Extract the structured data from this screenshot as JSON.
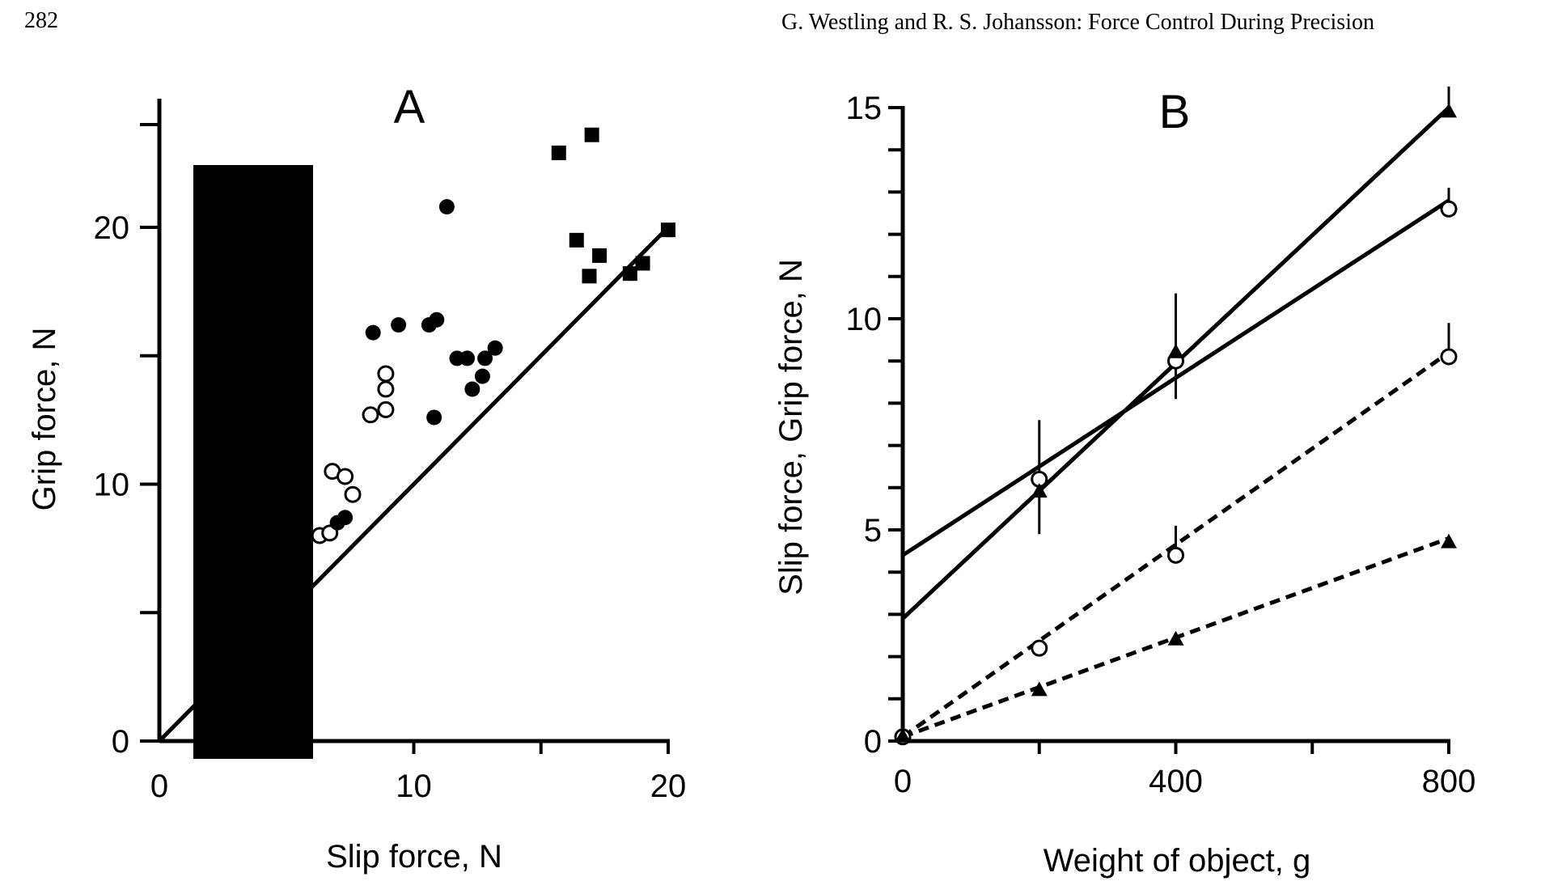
{
  "page": {
    "page_number": "282",
    "running_head": "G. Westling and R. S. Johansson: Force Control During Precision"
  },
  "chart_data": [
    {
      "panel_label": "A",
      "type": "scatter",
      "xlabel": "Slip force, N",
      "ylabel": "Grip force, N",
      "xlim": [
        0,
        20
      ],
      "ylim": [
        0,
        24
      ],
      "x_ticks": [
        0,
        10,
        20
      ],
      "y_ticks": [
        0,
        10,
        20
      ],
      "reference_line": [
        [
          0,
          0
        ],
        [
          20,
          20
        ]
      ],
      "series": [
        {
          "marker": "open-circle",
          "points": [
            [
              6.3,
              8.0
            ],
            [
              6.7,
              8.1
            ],
            [
              6.8,
              10.5
            ],
            [
              7.3,
              10.3
            ],
            [
              7.6,
              9.6
            ],
            [
              8.3,
              12.7
            ],
            [
              8.9,
              12.9
            ],
            [
              8.9,
              13.7
            ],
            [
              8.9,
              14.3
            ]
          ]
        },
        {
          "marker": "filled-circle",
          "points": [
            [
              7.0,
              8.5
            ],
            [
              7.3,
              8.7
            ],
            [
              8.4,
              15.9
            ],
            [
              9.4,
              16.2
            ],
            [
              10.6,
              16.2
            ],
            [
              10.8,
              12.6
            ],
            [
              10.9,
              16.4
            ],
            [
              11.3,
              20.8
            ],
            [
              11.7,
              14.9
            ],
            [
              12.1,
              14.9
            ],
            [
              12.3,
              13.7
            ],
            [
              12.7,
              14.2
            ],
            [
              12.8,
              14.9
            ],
            [
              13.2,
              15.3
            ]
          ]
        },
        {
          "marker": "filled-square",
          "points": [
            [
              15.7,
              22.9
            ],
            [
              16.4,
              19.5
            ],
            [
              16.9,
              18.1
            ],
            [
              17.0,
              23.6
            ],
            [
              17.3,
              18.9
            ],
            [
              18.5,
              18.2
            ],
            [
              19.0,
              18.6
            ],
            [
              20.0,
              19.9
            ]
          ]
        }
      ]
    },
    {
      "panel_label": "B",
      "type": "line",
      "xlabel": "Weight of object, g",
      "ylabel": "Slip force, Grip force, N",
      "xlim": [
        0,
        800
      ],
      "ylim": [
        0,
        15
      ],
      "x_ticks": [
        0,
        400,
        800
      ],
      "y_ticks": [
        0,
        5,
        10,
        15
      ],
      "series": [
        {
          "style": "solid",
          "marker": "open-circle",
          "fit": [
            [
              0,
              4.4
            ],
            [
              800,
              12.8
            ]
          ],
          "points": [
            [
              200,
              6.2
            ],
            [
              400,
              9.0
            ],
            [
              800,
              12.6
            ]
          ],
          "error_up": [
            1.4,
            1.6,
            0.5
          ],
          "error_down": [
            1.3,
            0.9,
            0
          ]
        },
        {
          "style": "solid",
          "marker": "filled-triangle",
          "fit": [
            [
              0,
              2.9
            ],
            [
              800,
              15.0
            ]
          ],
          "points": [
            [
              200,
              5.9
            ],
            [
              400,
              9.2
            ],
            [
              800,
              14.9
            ]
          ],
          "error_up": [
            0,
            0,
            0.6
          ],
          "error_down": [
            0,
            0,
            0
          ]
        },
        {
          "style": "dashed",
          "marker": "open-circle",
          "fit": [
            [
              0,
              0.1
            ],
            [
              800,
              9.2
            ]
          ],
          "points": [
            [
              0,
              0.1
            ],
            [
              200,
              2.2
            ],
            [
              400,
              4.4
            ],
            [
              800,
              9.1
            ]
          ],
          "error_up": [
            0,
            0,
            0.7,
            0.8
          ],
          "error_down": [
            0,
            0,
            0,
            0
          ]
        },
        {
          "style": "dashed",
          "marker": "filled-triangle",
          "fit": [
            [
              0,
              0.1
            ],
            [
              800,
              4.8
            ]
          ],
          "points": [
            [
              0,
              0.1
            ],
            [
              200,
              1.2
            ],
            [
              400,
              2.4
            ],
            [
              800,
              4.7
            ]
          ],
          "error_up": [
            0,
            0,
            0,
            0
          ],
          "error_down": [
            0,
            0,
            0,
            0
          ]
        }
      ]
    }
  ]
}
